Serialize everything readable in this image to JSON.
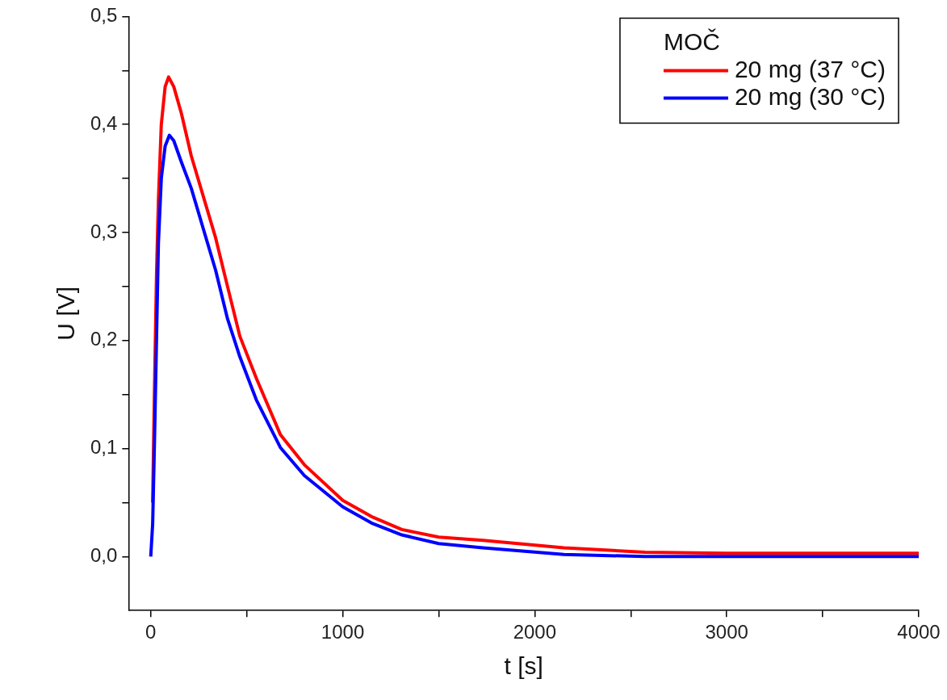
{
  "chart_data": {
    "type": "line",
    "xlabel": "t [s]",
    "ylabel": "U [V]",
    "legend_title": "MOČ",
    "legend": "top right",
    "grid": false,
    "marker": "none",
    "line_style": "solid",
    "xlim": [
      -115,
      4000
    ],
    "ylim": [
      -0.05,
      0.5
    ],
    "xticks": [
      0,
      {
        "value": 500,
        "label": null
      },
      1000,
      {
        "value": 1500,
        "label": null
      },
      2000,
      {
        "value": 2500,
        "label": null
      },
      3000,
      {
        "value": 3500,
        "label": null
      },
      4000
    ],
    "yticks": [
      {
        "value": 0,
        "label": "0,0"
      },
      {
        "value": 0.05,
        "label": null
      },
      {
        "value": 0.1,
        "label": "0,1"
      },
      {
        "value": 0.15,
        "label": null
      },
      {
        "value": 0.2,
        "label": "0,2"
      },
      {
        "value": 0.25,
        "label": null
      },
      {
        "value": 0.3,
        "label": "0,3"
      },
      {
        "value": 0.35,
        "label": null
      },
      {
        "value": 0.4,
        "label": "0,4"
      },
      {
        "value": 0.45,
        "label": null
      },
      {
        "value": 0.5,
        "label": "0,5"
      }
    ],
    "series": [
      {
        "name": "20 mg (37 °C)",
        "color": "#ff0000",
        "x": [
          10,
          20,
          30,
          40,
          55,
          75,
          93,
          120,
          160,
          211,
          338,
          400,
          464,
          550,
          675,
          800,
          1000,
          1150,
          1308,
          1500,
          1730,
          2152,
          2574,
          3000,
          3500,
          4000
        ],
        "values": [
          0.05,
          0.16,
          0.26,
          0.33,
          0.4,
          0.435,
          0.444,
          0.435,
          0.41,
          0.371,
          0.295,
          0.25,
          0.204,
          0.165,
          0.113,
          0.085,
          0.052,
          0.037,
          0.025,
          0.018,
          0.015,
          0.008,
          0.004,
          0.003,
          0.003,
          0.003
        ]
      },
      {
        "name": "20 mg (30 °C)",
        "color": "#0000ff",
        "x": [
          0,
          10,
          20,
          30,
          40,
          55,
          75,
          97,
          120,
          160,
          211,
          338,
          400,
          464,
          550,
          675,
          800,
          1000,
          1150,
          1308,
          1500,
          1730,
          2152,
          2574,
          3000,
          3500,
          4000
        ],
        "values": [
          0,
          0.03,
          0.11,
          0.2,
          0.29,
          0.35,
          0.38,
          0.39,
          0.385,
          0.365,
          0.341,
          0.265,
          0.22,
          0.185,
          0.145,
          0.101,
          0.075,
          0.046,
          0.031,
          0.02,
          0.012,
          0.008,
          0.002,
          0.0,
          0.0,
          0.0,
          0.0
        ]
      }
    ]
  }
}
